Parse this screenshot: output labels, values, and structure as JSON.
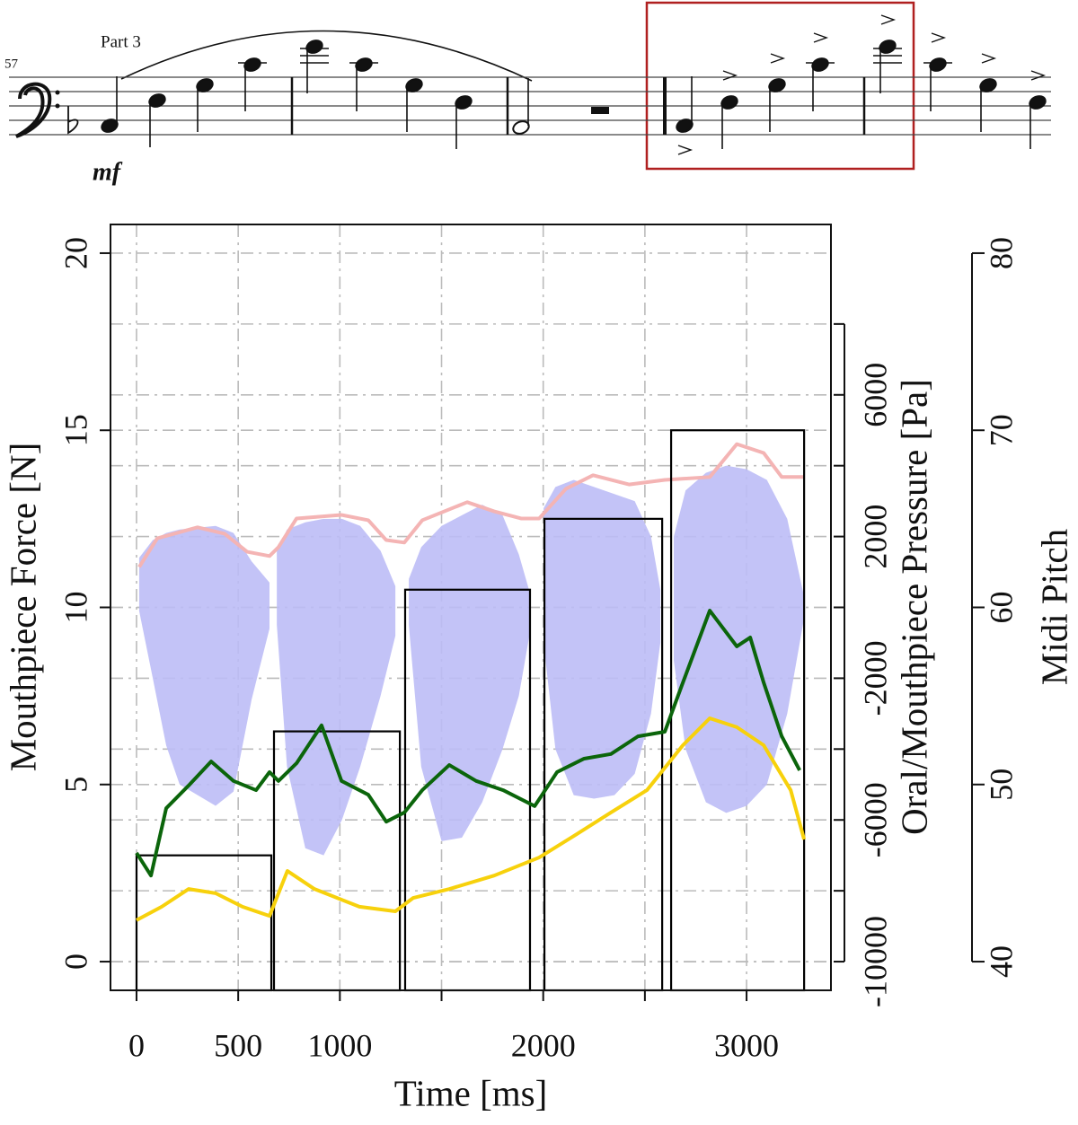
{
  "score": {
    "measure_number": "57",
    "part": "Part 3",
    "dynamic": "mf"
  },
  "chart_data": {
    "type": "line",
    "xlabel": "Time [ms]",
    "ylabel": "Mouthpiece Force [N]",
    "y2label": "Oral/Mouthpiece Pressure [Pa]",
    "y3label": "Midi Pitch",
    "xlim": [
      -128,
      3415
    ],
    "xticks": [
      0,
      500,
      1000,
      2000,
      3000
    ],
    "xminor": [
      1500,
      2500
    ],
    "ylim": [
      -0.81,
      20.81
    ],
    "yticks": [
      0,
      5,
      10,
      15,
      20
    ],
    "y2lim": [
      -10810,
      10810
    ],
    "y2ticks": [
      -10000,
      -6000,
      -2000,
      2000,
      6000
    ],
    "y2minor": [
      -8000,
      -4000,
      0,
      4000,
      8000
    ],
    "y3lim": [
      38.38,
      81.62
    ],
    "y3ticks": [
      40,
      50,
      60,
      70,
      80
    ],
    "grid": true,
    "notes": {
      "axis": "y3",
      "color": "#000000",
      "start": [
        0,
        676,
        1321,
        2006,
        2629
      ],
      "end": [
        663,
        1295,
        1935,
        2585,
        3283
      ],
      "values": [
        46,
        53,
        61,
        65,
        70
      ]
    },
    "series": [
      {
        "axis": "y2",
        "color": "#bcbcf6",
        "x": [
          13,
          80,
          146,
          212,
          389,
          477,
          566,
          654,
          null,
          690,
          740,
          830,
          920,
          1010,
          1100,
          1200,
          1273,
          null,
          1339,
          1400,
          1500,
          1600,
          1700,
          1800,
          1880,
          1935,
          null,
          2002,
          2060,
          2150,
          2250,
          2350,
          2450,
          2530,
          2576,
          null,
          2642,
          2700,
          2800,
          2900,
          3000,
          3100,
          3200,
          3283
        ],
        "upper": [
          1400,
          1900,
          2100,
          2200,
          2300,
          2100,
          1300,
          700,
          null,
          1600,
          2200,
          2400,
          2500,
          2500,
          2300,
          1600,
          600,
          null,
          800,
          1700,
          2300,
          2600,
          2900,
          2600,
          1500,
          400,
          null,
          2800,
          3400,
          3600,
          3400,
          3200,
          3000,
          2000,
          500,
          null,
          2000,
          3300,
          3800,
          4000,
          3900,
          3600,
          2500,
          300
        ],
        "lower": [
          -100,
          -2000,
          -3900,
          -5000,
          -5600,
          -5200,
          -2600,
          -600,
          null,
          -500,
          -4500,
          -6800,
          -7000,
          -6000,
          -4500,
          -2500,
          -800,
          null,
          -500,
          -4500,
          -6600,
          -6500,
          -5500,
          -4000,
          -2500,
          -700,
          null,
          -1000,
          -4000,
          -5300,
          -5400,
          -5300,
          -4700,
          -3000,
          -1000,
          null,
          -1500,
          -4000,
          -5500,
          -5800,
          -5600,
          -5000,
          -3000,
          -300
        ]
      },
      {
        "axis": "y2",
        "color": "#f4b4b4",
        "x": [
          13,
          102,
          300,
          433,
          544,
          654,
          698,
          787,
          1008,
          1140,
          1228,
          1317,
          1405,
          1626,
          1759,
          1891,
          1980,
          2112,
          2245,
          2422,
          2598,
          2819,
          2952,
          3084,
          3173,
          3283
        ],
        "values": [
          1140,
          1950,
          2260,
          2080,
          1570,
          1450,
          1700,
          2510,
          2610,
          2460,
          1900,
          1830,
          2460,
          2970,
          2710,
          2510,
          2510,
          3350,
          3730,
          3470,
          3600,
          3680,
          4610,
          4360,
          3680,
          3680
        ]
      },
      {
        "axis": "y",
        "color": "#0b650b",
        "x": [
          0,
          71,
          146,
          256,
          367,
          477,
          588,
          654,
          698,
          787,
          910,
          1008,
          1140,
          1228,
          1317,
          1405,
          1538,
          1670,
          1803,
          1958,
          2068,
          2201,
          2333,
          2466,
          2598,
          2687,
          2819,
          2952,
          3018,
          3084,
          3173,
          3261
        ],
        "values": [
          3.07,
          2.43,
          4.33,
          4.97,
          5.65,
          5.1,
          4.84,
          5.35,
          5.1,
          5.6,
          6.67,
          5.1,
          4.71,
          3.95,
          4.21,
          4.84,
          5.55,
          5.1,
          4.84,
          4.39,
          5.35,
          5.73,
          5.86,
          6.36,
          6.49,
          7.88,
          9.91,
          8.9,
          9.15,
          7.88,
          6.36,
          5.4
        ]
      },
      {
        "axis": "y",
        "color": "#f7d10c",
        "x": [
          0,
          124,
          256,
          389,
          521,
          654,
          742,
          875,
          1096,
          1273,
          1361,
          1538,
          1759,
          1980,
          2157,
          2333,
          2510,
          2687,
          2819,
          2952,
          3084,
          3217,
          3283
        ],
        "values": [
          1.17,
          1.55,
          2.05,
          1.93,
          1.55,
          1.29,
          2.56,
          2.05,
          1.55,
          1.42,
          1.8,
          2.05,
          2.43,
          2.94,
          3.57,
          4.21,
          4.84,
          6.11,
          6.87,
          6.62,
          6.11,
          4.84,
          3.45
        ]
      }
    ]
  }
}
